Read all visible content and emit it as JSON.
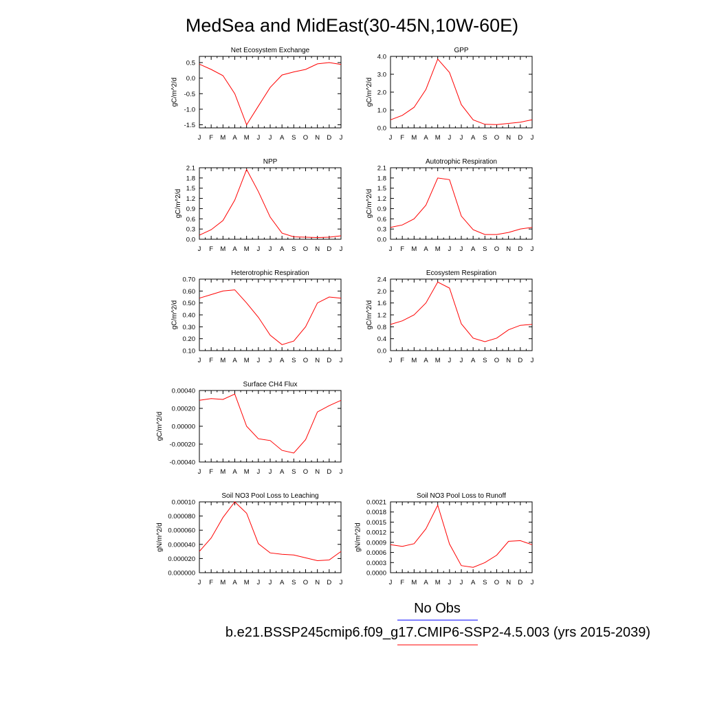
{
  "title": "MedSea and MidEast(30-45N,10W-60E)",
  "colors": {
    "model": "#ff0000",
    "obs": "#0000ff"
  },
  "legend": {
    "obs_label": "No Obs",
    "model_label": "b.e21.BSSP245cmip6.f09_g17.CMIP6-SSP2-4.5.003 (yrs 2015-2039)"
  },
  "chart_data": [
    {
      "type": "line",
      "title": "Net Ecosystem Exchange",
      "ylabel": "gC/m^2/d",
      "x": [
        "J",
        "F",
        "M",
        "A",
        "M",
        "J",
        "J",
        "A",
        "S",
        "O",
        "N",
        "D",
        "J"
      ],
      "ylim": [
        -1.6,
        0.7
      ],
      "yticks": [
        "0.5",
        "0.0",
        "-0.5",
        "-1.0",
        "-1.5"
      ],
      "series": [
        {
          "values": [
            0.45,
            0.28,
            0.08,
            -0.5,
            -1.5,
            -0.9,
            -0.3,
            0.1,
            0.2,
            0.28,
            0.46,
            0.5,
            0.44
          ]
        }
      ]
    },
    {
      "type": "line",
      "title": "GPP",
      "ylabel": "gC/m^2/d",
      "x": [
        "J",
        "F",
        "M",
        "A",
        "M",
        "J",
        "J",
        "A",
        "S",
        "O",
        "N",
        "D",
        "J"
      ],
      "ylim": [
        0.0,
        4.0
      ],
      "yticks": [
        "0.0",
        "1.0",
        "2.0",
        "3.0",
        "4.0"
      ],
      "series": [
        {
          "values": [
            0.45,
            0.7,
            1.15,
            2.15,
            3.85,
            3.1,
            1.3,
            0.45,
            0.2,
            0.18,
            0.25,
            0.32,
            0.45
          ]
        }
      ]
    },
    {
      "type": "line",
      "title": "NPP",
      "ylabel": "gC/m^2/d",
      "x": [
        "J",
        "F",
        "M",
        "A",
        "M",
        "J",
        "J",
        "A",
        "S",
        "O",
        "N",
        "D",
        "J"
      ],
      "ylim": [
        0.0,
        2.1
      ],
      "yticks": [
        "0.0",
        "0.3",
        "0.6",
        "0.9",
        "1.2",
        "1.5",
        "1.8",
        "2.1"
      ],
      "series": [
        {
          "values": [
            0.12,
            0.28,
            0.55,
            1.15,
            2.05,
            1.4,
            0.65,
            0.18,
            0.07,
            0.06,
            0.05,
            0.06,
            0.1
          ]
        }
      ]
    },
    {
      "type": "line",
      "title": "Autotrophic Respiration",
      "ylabel": "gC/m^2/d",
      "x": [
        "J",
        "F",
        "M",
        "A",
        "M",
        "J",
        "J",
        "A",
        "S",
        "O",
        "N",
        "D",
        "J"
      ],
      "ylim": [
        0.0,
        2.1
      ],
      "yticks": [
        "0.0",
        "0.3",
        "0.6",
        "0.9",
        "1.2",
        "1.5",
        "1.8",
        "2.1"
      ],
      "series": [
        {
          "values": [
            0.35,
            0.42,
            0.6,
            1.0,
            1.8,
            1.75,
            0.68,
            0.28,
            0.14,
            0.14,
            0.2,
            0.3,
            0.35
          ]
        }
      ]
    },
    {
      "type": "line",
      "title": "Heterotrophic Respiration",
      "ylabel": "gC/m^2/d",
      "x": [
        "J",
        "F",
        "M",
        "A",
        "M",
        "J",
        "J",
        "A",
        "S",
        "O",
        "N",
        "D",
        "J"
      ],
      "ylim": [
        0.1,
        0.7
      ],
      "yticks": [
        "0.10",
        "0.20",
        "0.30",
        "0.40",
        "0.50",
        "0.60",
        "0.70"
      ],
      "series": [
        {
          "values": [
            0.54,
            0.57,
            0.6,
            0.61,
            0.5,
            0.38,
            0.23,
            0.15,
            0.18,
            0.3,
            0.5,
            0.55,
            0.54
          ]
        }
      ]
    },
    {
      "type": "line",
      "title": "Ecosystem Respiration",
      "ylabel": "gC/m^2/d",
      "x": [
        "J",
        "F",
        "M",
        "A",
        "M",
        "J",
        "J",
        "A",
        "S",
        "O",
        "N",
        "D",
        "J"
      ],
      "ylim": [
        0.0,
        2.4
      ],
      "yticks": [
        "0.0",
        "0.4",
        "0.8",
        "1.2",
        "1.6",
        "2.0",
        "2.4"
      ],
      "series": [
        {
          "values": [
            0.88,
            1.0,
            1.2,
            1.6,
            2.3,
            2.1,
            0.9,
            0.42,
            0.3,
            0.42,
            0.7,
            0.85,
            0.88
          ]
        }
      ]
    },
    {
      "type": "line",
      "title": "Surface CH4 Flux",
      "ylabel": "gC/m^2/d",
      "x": [
        "J",
        "F",
        "M",
        "A",
        "M",
        "J",
        "J",
        "A",
        "S",
        "O",
        "N",
        "D",
        "J"
      ],
      "ylim": [
        -0.0004,
        0.0004
      ],
      "yticks": [
        "-0.00040",
        "-0.00020",
        "0.00000",
        "0.00020",
        "0.00040"
      ],
      "series": [
        {
          "values": [
            0.00029,
            0.00031,
            0.0003,
            0.00036,
            0.0,
            -0.00014,
            -0.00016,
            -0.00027,
            -0.0003,
            -0.00015,
            0.00016,
            0.00023,
            0.00029
          ]
        }
      ]
    },
    {
      "type": "line",
      "title": "Soil NO3 Pool Loss to Leaching",
      "ylabel": "gN/m^2/d",
      "x": [
        "J",
        "F",
        "M",
        "A",
        "M",
        "J",
        "J",
        "A",
        "S",
        "O",
        "N",
        "D",
        "J"
      ],
      "ylim": [
        0.0,
        0.0001
      ],
      "yticks": [
        "0.000000",
        "0.000020",
        "0.000040",
        "0.000060",
        "0.000080",
        "0.00010"
      ],
      "series": [
        {
          "values": [
            3e-05,
            4.9e-05,
            7.8e-05,
            0.0001,
            8.4e-05,
            4.1e-05,
            2.8e-05,
            2.6e-05,
            2.5e-05,
            2.1e-05,
            1.7e-05,
            1.8e-05,
            3e-05
          ]
        }
      ]
    },
    {
      "type": "line",
      "title": "Soil NO3 Pool Loss to Runoff",
      "ylabel": "gN/m^2/d",
      "x": [
        "J",
        "F",
        "M",
        "A",
        "M",
        "J",
        "J",
        "A",
        "S",
        "O",
        "N",
        "D",
        "J"
      ],
      "ylim": [
        0.0,
        0.0021
      ],
      "yticks": [
        "0.0000",
        "0.0003",
        "0.0006",
        "0.0009",
        "0.0012",
        "0.0015",
        "0.0018",
        "0.0021"
      ],
      "series": [
        {
          "values": [
            0.00083,
            0.00078,
            0.00086,
            0.0013,
            0.002,
            0.00085,
            0.00021,
            0.00016,
            0.0003,
            0.00052,
            0.00093,
            0.00095,
            0.00083
          ]
        }
      ]
    }
  ]
}
